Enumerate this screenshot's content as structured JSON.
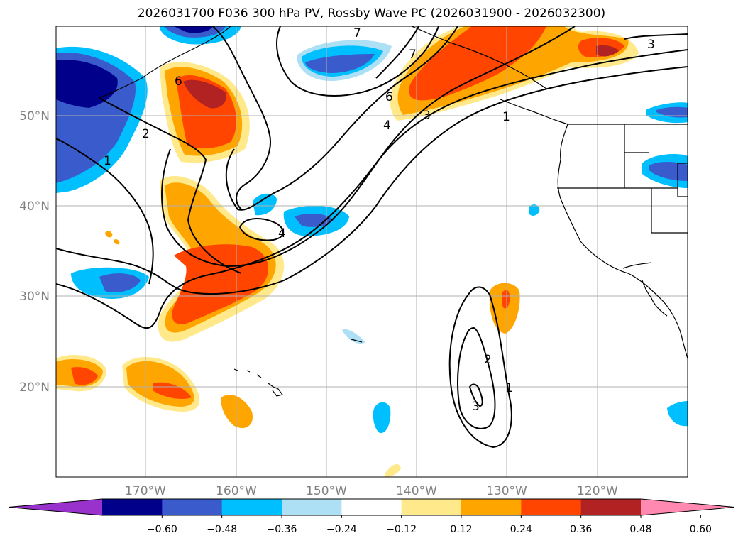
{
  "title": "2026031700 F036 300 hPa PV, Rossby Wave PC (2026031900 - 2026032300)",
  "latitude_labels": [
    "50°N",
    "40°N",
    "30°N",
    "20°N"
  ],
  "longitude_labels": [
    "170°W",
    "160°W",
    "150°W",
    "140°W",
    "130°W",
    "120°W"
  ],
  "colorbar": {
    "ticks": [
      "−0.60",
      "−0.48",
      "−0.36",
      "−0.24",
      "−0.12",
      "0.12",
      "0.24",
      "0.36",
      "0.48",
      "0.60"
    ],
    "colors": [
      "#9932cc",
      "#00008b",
      "#3a5bcc",
      "#00bfff",
      "#aee0f5",
      "#ffffff",
      "#ffe98a",
      "#ffa500",
      "#ff4500",
      "#b22222",
      "#ff89b0"
    ]
  },
  "contour_labels": [
    "1",
    "2",
    "3",
    "4",
    "6",
    "7",
    "1",
    "3",
    "4",
    "6",
    "7",
    "1",
    "2",
    "3"
  ],
  "colors": {
    "grid": "#b0b0b0",
    "coast": "#000000",
    "contour": "#000000"
  }
}
